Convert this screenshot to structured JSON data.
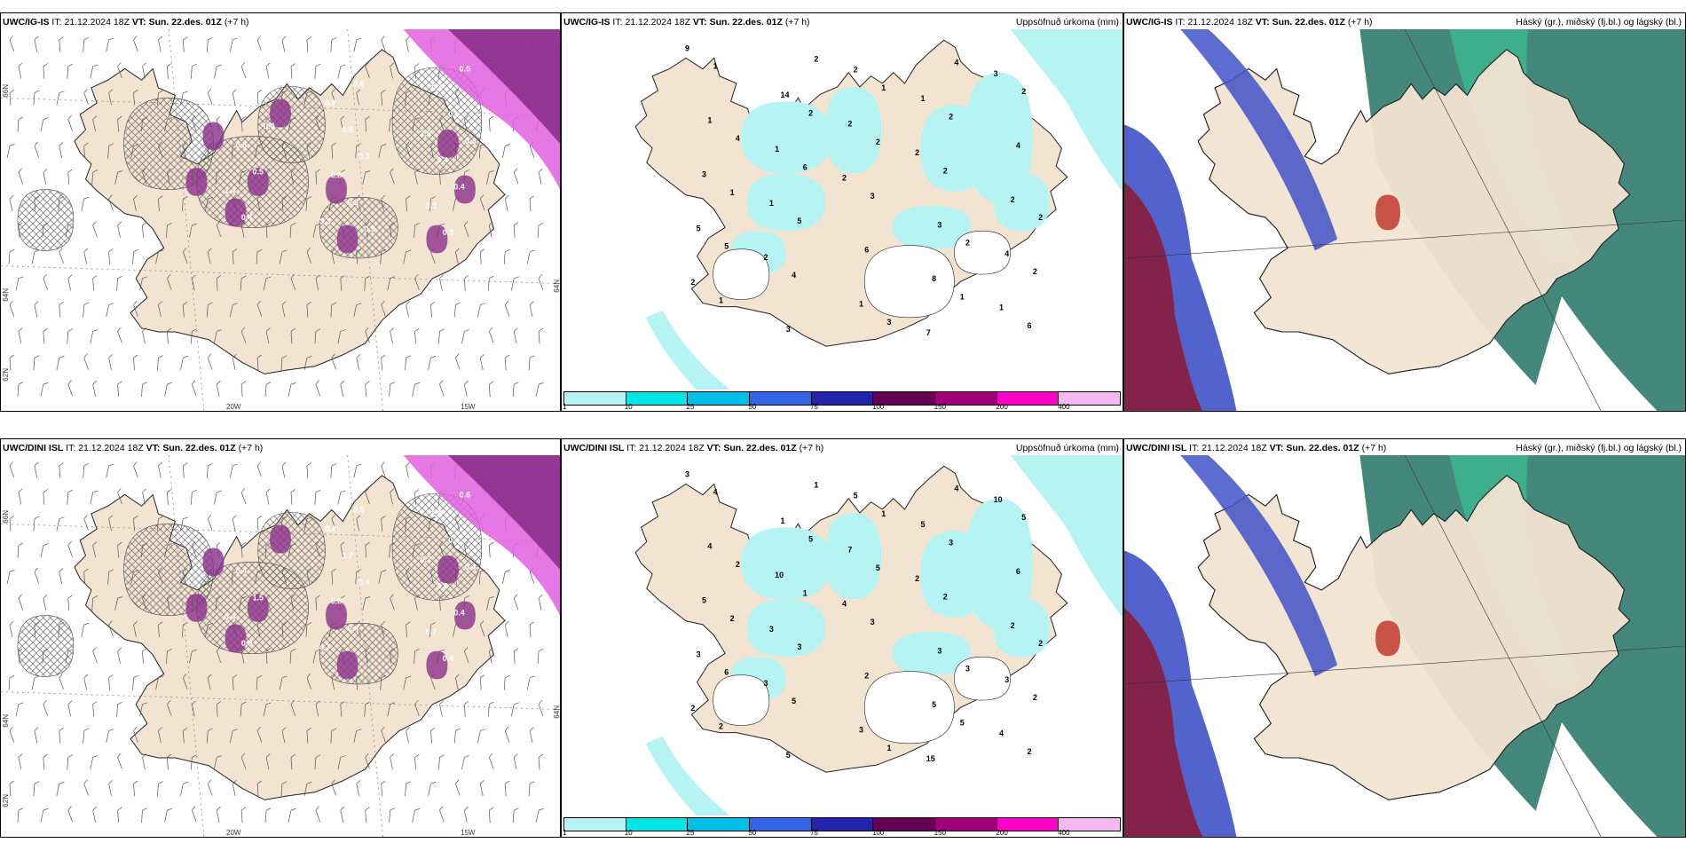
{
  "panels": [
    {
      "id": "p1",
      "model": "UWC/IG-IS",
      "it_label": "IT:",
      "it": "21.12.2024 18Z",
      "vt_label": "VT:",
      "vt": "Sun. 22.des. 01Z",
      "lead": "(+7 h)",
      "right": "",
      "annotations": [
        "0.4",
        "2.0",
        "3.3",
        "3.3",
        "3.3",
        "0.9",
        "1.4",
        "0.4",
        "0.8",
        "0.5",
        "0.4",
        "0.4",
        "0.5",
        "0.3",
        "0.8",
        "0.4",
        "0.5",
        "0.3",
        "0.4",
        "0.4",
        "0.8",
        "0.5",
        "0.5",
        "0.3",
        "0.9",
        "0.3",
        "0.9",
        "0.4"
      ],
      "axes": {
        "lon1": "20W",
        "lon2": "15W",
        "lat1": "66N",
        "lat2": "64N",
        "lat3": "62N",
        "lat4": "64N"
      }
    },
    {
      "id": "p2",
      "model": "UWC/IG-IS",
      "it_label": "IT:",
      "it": "21.12.2024 18Z",
      "vt_label": "VT:",
      "vt": "Sun. 22.des. 01Z",
      "lead": "(+7 h)",
      "right": "Uppsöfnuð úrkoma (mm)",
      "annotations": [
        "9",
        "2",
        "2",
        "3",
        "2",
        "2",
        "1",
        "1",
        "1",
        "2",
        "5",
        "7",
        "1",
        "4",
        "2",
        "3",
        "8",
        "14",
        "2",
        "1",
        "1",
        "3",
        "3",
        "4",
        "6",
        "1",
        "2",
        "4",
        "2",
        "3",
        "1",
        "2",
        "5",
        "6",
        "2",
        "5",
        "4",
        "6",
        "2",
        "1",
        "1",
        "1",
        "2",
        "2",
        "3",
        "4",
        "2",
        "2"
      ]
    },
    {
      "id": "p3",
      "model": "UWC/IG-IS",
      "it_label": "IT:",
      "it": "21.12.2024 18Z",
      "vt_label": "VT:",
      "vt": "Sun. 22.des. 01Z",
      "lead": "(+7 h)",
      "right": "Háský (gr.), miðský (fj.bl.) og lágský (bl.)",
      "annotations": []
    },
    {
      "id": "p4",
      "model": "UWC/DINI ISL",
      "it_label": "IT:",
      "it": "21.12.2024 18Z",
      "vt_label": "VT:",
      "vt": "Sun. 22.des. 01Z",
      "lead": "(+7 h)",
      "right": "",
      "annotations": [
        "0.7",
        "0.7",
        "4.7",
        "3.2",
        "0.7",
        "0.4",
        "0.4",
        "1.5",
        "0.8",
        "0.5",
        "0.6",
        "0.6",
        "0.4",
        "0.4",
        "1.7",
        "0.9",
        "0.4",
        "0.4",
        "0.5",
        "0.4",
        "0.5",
        "1.5",
        "0.6",
        "0.4",
        "0.4",
        "0.4"
      ],
      "axes": {
        "lon1": "20W",
        "lon2": "15W",
        "lat1": "66N",
        "lat2": "64N",
        "lat3": "62N",
        "lat4": "64N"
      }
    },
    {
      "id": "p5",
      "model": "UWC/DINI ISL",
      "it_label": "IT:",
      "it": "21.12.2024 18Z",
      "vt_label": "VT:",
      "vt": "Sun. 22.des. 01Z",
      "lead": "(+7 h)",
      "right": "Uppsöfnuð úrkoma (mm)",
      "annotations": [
        "3",
        "2",
        "3",
        "10",
        "4",
        "2",
        "5",
        "3",
        "4",
        "7",
        "3",
        "15",
        "10",
        "3",
        "5",
        "5",
        "5",
        "1",
        "2",
        "3",
        "4",
        "3",
        "5",
        "6",
        "2",
        "4",
        "2",
        "5",
        "5",
        "3",
        "2",
        "3",
        "3",
        "2",
        "5",
        "6",
        "4",
        "1",
        "2",
        "1",
        "2",
        "5",
        "5",
        "2",
        "1",
        "2",
        "3",
        "1"
      ]
    },
    {
      "id": "p6",
      "model": "UWC/DINI ISL",
      "it_label": "IT:",
      "it": "21.12.2024 18Z",
      "vt_label": "VT:",
      "vt": "Sun. 22.des. 01Z",
      "lead": "(+7 h)",
      "right": "Háský (gr.), miðský (fj.bl.) og lágský (bl.)",
      "annotations": []
    }
  ],
  "colorbar": {
    "labels": [
      "1",
      "10",
      "25",
      "50",
      "75",
      "100",
      "150",
      "200",
      "400"
    ],
    "colors": [
      "#b8f4f4",
      "#00e6e6",
      "#00bfe6",
      "#3366e6",
      "#2222aa",
      "#660055",
      "#a0007a",
      "#ff00c8",
      "#f5b8f0"
    ]
  },
  "colors": {
    "land": "#f3e4d2",
    "precip": "#b6f4f4",
    "sea": "#ffffff",
    "purple": "#8b2f8b",
    "magenta": "#e060e0"
  }
}
